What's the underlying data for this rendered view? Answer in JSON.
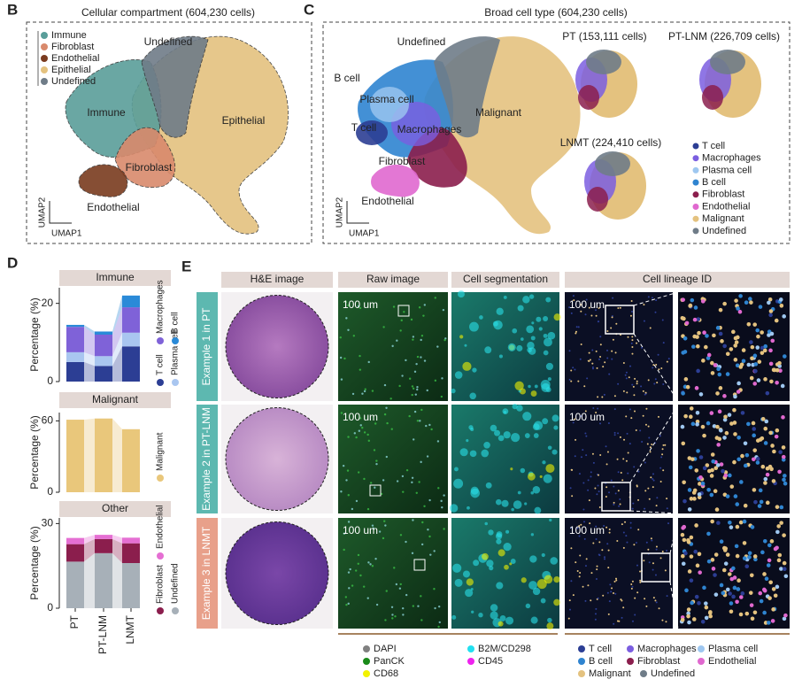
{
  "panels": {
    "B": {
      "letter": "B",
      "title": "Cellular compartment (604,230 cells)",
      "legend": [
        {
          "name": "Immune",
          "color": "#5a9e9a"
        },
        {
          "name": "Fibroblast",
          "color": "#d98a6c"
        },
        {
          "name": "Endothelial",
          "color": "#7a3b1f"
        },
        {
          "name": "Epithelial",
          "color": "#e4c27f"
        },
        {
          "name": "Undefined",
          "color": "#6f7c88"
        }
      ],
      "labels": [
        "Undefined",
        "Immune",
        "Epithelial",
        "Fibroblast",
        "Endothelial"
      ],
      "axis_x": "UMAP1",
      "axis_y": "UMAP2"
    },
    "C": {
      "letter": "C",
      "title": "Broad cell type (604,230 cells)",
      "labels": [
        "Undefined",
        "B cell",
        "Plasma cell",
        "T cell",
        "Macrophages",
        "Malignant",
        "Fibroblast",
        "Endothelial"
      ],
      "insets": [
        "PT (153,111 cells)",
        "PT-LNM (226,709 cells)",
        "LNMT (224,410 cells)"
      ],
      "legend": [
        {
          "name": "T cell",
          "color": "#2c3e94"
        },
        {
          "name": "Macrophages",
          "color": "#7b5ee0"
        },
        {
          "name": "Plasma cell",
          "color": "#9ec7f0"
        },
        {
          "name": "B cell",
          "color": "#2f84d0"
        },
        {
          "name": "Fibroblast",
          "color": "#8b1e4d"
        },
        {
          "name": "Endothelial",
          "color": "#e068cf"
        },
        {
          "name": "Malignant",
          "color": "#e4c27f"
        },
        {
          "name": "Undefined",
          "color": "#6f7c88"
        }
      ],
      "axis_x": "UMAP1",
      "axis_y": "UMAP2"
    },
    "D": {
      "letter": "D"
    },
    "E": {
      "letter": "E",
      "headers": [
        "H&E image",
        "Raw image",
        "Cell segmentation",
        "Cell lineage ID"
      ],
      "rows": [
        "Example 1 in PT",
        "Example 2 in PT-LNM",
        "Example 3 in LNMT"
      ],
      "scale_bar": "100 um",
      "marker_legend": [
        {
          "name": "DAPI",
          "color": "#808080"
        },
        {
          "name": "PanCK",
          "color": "#1a8a1a"
        },
        {
          "name": "CD68",
          "color": "#f2f200"
        },
        {
          "name": "B2M/CD298",
          "color": "#22e0f0"
        },
        {
          "name": "CD45",
          "color": "#ee22ee"
        }
      ],
      "lineage_legend": [
        {
          "name": "T cell",
          "color": "#2c3e94"
        },
        {
          "name": "Macrophages",
          "color": "#7b5ee0"
        },
        {
          "name": "Plasma cell",
          "color": "#9ec7f0"
        },
        {
          "name": "B cell",
          "color": "#2f84d0"
        },
        {
          "name": "Fibroblast",
          "color": "#8b1e4d"
        },
        {
          "name": "Endothelial",
          "color": "#e068cf"
        },
        {
          "name": "Malignant",
          "color": "#e4c27f"
        },
        {
          "name": "Undefined",
          "color": "#6f7c88"
        }
      ]
    }
  },
  "chart_data": [
    {
      "type": "bar",
      "stacked": true,
      "title": "Immune",
      "ylabel": "Percentage (%)",
      "ylim": [
        0,
        24
      ],
      "yticks": [
        0,
        20
      ],
      "series": [
        {
          "name": "T cell",
          "color": "#2c3e94",
          "values": [
            5,
            4,
            9
          ]
        },
        {
          "name": "Plasma cell",
          "color": "#a9c6f0",
          "values": [
            2.5,
            2.5,
            3.5
          ]
        },
        {
          "name": "Macrophages",
          "color": "#7f62d8",
          "values": [
            6.5,
            5.5,
            6.5
          ]
        },
        {
          "name": "B cell",
          "color": "#2a8ad8",
          "values": [
            0.5,
            0.8,
            3
          ]
        }
      ]
    },
    {
      "type": "bar",
      "stacked": true,
      "title": "Malignant",
      "ylabel": "Percentage (%)",
      "ylim": [
        0,
        67
      ],
      "yticks": [
        0,
        60
      ],
      "series": [
        {
          "name": "Malignant",
          "color": "#e9c77b",
          "values": [
            61,
            62,
            53
          ]
        }
      ]
    },
    {
      "type": "bar",
      "stacked": true,
      "title": "Other",
      "ylabel": "Percentage (%)",
      "ylim": [
        0,
        32
      ],
      "yticks": [
        0,
        30
      ],
      "categories": [
        "PT",
        "PT-LNM",
        "LNMT"
      ],
      "series": [
        {
          "name": "Undefined",
          "color": "#a7b0b8",
          "values": [
            16.5,
            19.5,
            16
          ]
        },
        {
          "name": "Fibroblast",
          "color": "#8b1e4d",
          "values": [
            6.2,
            5,
            7
          ]
        },
        {
          "name": "Endothelial",
          "color": "#e56fd3",
          "values": [
            2.2,
            1.5,
            2
          ]
        }
      ]
    }
  ]
}
